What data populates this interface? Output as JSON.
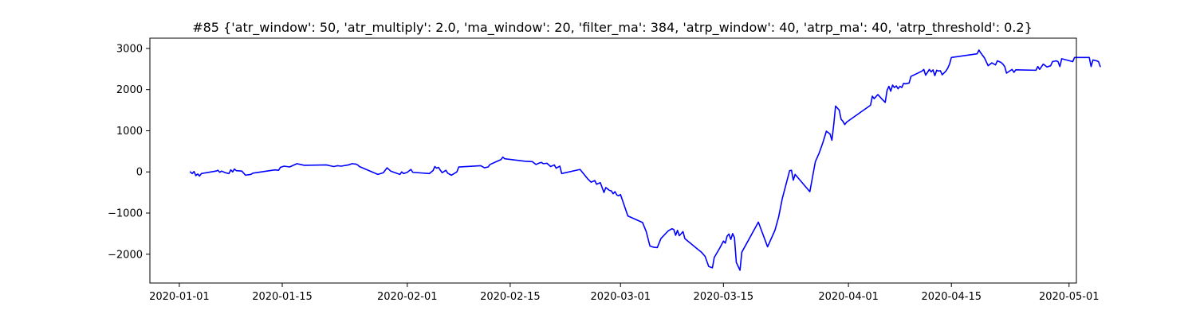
{
  "chart_data": {
    "type": "line",
    "title": "#85 {'atr_window': 50, 'atr_multiply': 2.0, 'ma_window': 20, 'filter_ma': 384, 'atrp_window': 40, 'atrp_ma': 40, 'atrp_threshold': 0.2}",
    "xlabel": "",
    "ylabel": "",
    "x_type": "date",
    "xlim": [
      "2019-12-28",
      "2020-05-02"
    ],
    "ylim": [
      -2700,
      3250
    ],
    "grid": false,
    "x_ticks": [
      {
        "date": "2020-01-01",
        "label": "2020-01-01"
      },
      {
        "date": "2020-01-15",
        "label": "2020-01-15"
      },
      {
        "date": "2020-02-01",
        "label": "2020-02-01"
      },
      {
        "date": "2020-02-15",
        "label": "2020-02-15"
      },
      {
        "date": "2020-03-01",
        "label": "2020-03-01"
      },
      {
        "date": "2020-03-15",
        "label": "2020-03-15"
      },
      {
        "date": "2020-04-01",
        "label": "2020-04-01"
      },
      {
        "date": "2020-04-15",
        "label": "2020-04-15"
      },
      {
        "date": "2020-05-01",
        "label": "2020-05-01"
      }
    ],
    "y_ticks": [
      {
        "value": -2000,
        "label": "−2000"
      },
      {
        "value": -1000,
        "label": "−1000"
      },
      {
        "value": 0,
        "label": "0"
      },
      {
        "value": 1000,
        "label": "1000"
      },
      {
        "value": 2000,
        "label": "2000"
      },
      {
        "value": 3000,
        "label": "3000"
      }
    ],
    "series": [
      {
        "color": "#0000ff",
        "points": [
          [
            "2020-01-02 12:00",
            0
          ],
          [
            "2020-01-02 18:00",
            -40
          ],
          [
            "2020-01-03 00:00",
            10
          ],
          [
            "2020-01-03 06:00",
            -90
          ],
          [
            "2020-01-03 12:00",
            -50
          ],
          [
            "2020-01-03 18:00",
            -100
          ],
          [
            "2020-01-04 00:00",
            -40
          ],
          [
            "2020-01-06 00:00",
            20
          ],
          [
            "2020-01-06 06:00",
            40
          ],
          [
            "2020-01-06 12:00",
            -10
          ],
          [
            "2020-01-06 18:00",
            20
          ],
          [
            "2020-01-07 06:00",
            -20
          ],
          [
            "2020-01-07 18:00",
            -40
          ],
          [
            "2020-01-08 00:00",
            50
          ],
          [
            "2020-01-08 06:00",
            0
          ],
          [
            "2020-01-08 12:00",
            70
          ],
          [
            "2020-01-08 18:00",
            30
          ],
          [
            "2020-01-09 12:00",
            20
          ],
          [
            "2020-01-10 00:00",
            -80
          ],
          [
            "2020-01-10 18:00",
            -60
          ],
          [
            "2020-01-11 00:00",
            -30
          ],
          [
            "2020-01-14 00:00",
            50
          ],
          [
            "2020-01-14 12:00",
            40
          ],
          [
            "2020-01-14 18:00",
            110
          ],
          [
            "2020-01-15 06:00",
            140
          ],
          [
            "2020-01-16 00:00",
            120
          ],
          [
            "2020-01-17 00:00",
            200
          ],
          [
            "2020-01-17 12:00",
            180
          ],
          [
            "2020-01-18 00:00",
            160
          ],
          [
            "2020-01-21 00:00",
            170
          ],
          [
            "2020-01-21 12:00",
            150
          ],
          [
            "2020-01-22 00:00",
            130
          ],
          [
            "2020-01-22 12:00",
            150
          ],
          [
            "2020-01-23 00:00",
            140
          ],
          [
            "2020-01-24 00:00",
            170
          ],
          [
            "2020-01-24 12:00",
            200
          ],
          [
            "2020-01-25 00:00",
            190
          ],
          [
            "2020-01-25 06:00",
            170
          ],
          [
            "2020-01-25 12:00",
            130
          ],
          [
            "2020-01-28 00:00",
            -60
          ],
          [
            "2020-01-28 18:00",
            -20
          ],
          [
            "2020-01-29 06:00",
            100
          ],
          [
            "2020-01-29 18:00",
            20
          ],
          [
            "2020-01-30 12:00",
            -30
          ],
          [
            "2020-01-31 00:00",
            -60
          ],
          [
            "2020-01-31 06:00",
            0
          ],
          [
            "2020-01-31 12:00",
            -40
          ],
          [
            "2020-02-01 00:00",
            -10
          ],
          [
            "2020-02-01 12:00",
            60
          ],
          [
            "2020-02-01 18:00",
            -10
          ],
          [
            "2020-02-04 00:00",
            -40
          ],
          [
            "2020-02-04 12:00",
            30
          ],
          [
            "2020-02-04 18:00",
            130
          ],
          [
            "2020-02-05 00:00",
            90
          ],
          [
            "2020-02-05 06:00",
            110
          ],
          [
            "2020-02-05 12:00",
            40
          ],
          [
            "2020-02-05 18:00",
            -20
          ],
          [
            "2020-02-06 06:00",
            40
          ],
          [
            "2020-02-06 12:00",
            -30
          ],
          [
            "2020-02-07 00:00",
            -80
          ],
          [
            "2020-02-07 18:00",
            0
          ],
          [
            "2020-02-08 00:00",
            120
          ],
          [
            "2020-02-11 00:00",
            150
          ],
          [
            "2020-02-11 12:00",
            100
          ],
          [
            "2020-02-12 00:00",
            120
          ],
          [
            "2020-02-12 06:00",
            180
          ],
          [
            "2020-02-13 06:00",
            260
          ],
          [
            "2020-02-13 18:00",
            300
          ],
          [
            "2020-02-14 00:00",
            360
          ],
          [
            "2020-02-14 06:00",
            320
          ],
          [
            "2020-02-17 00:00",
            260
          ],
          [
            "2020-02-18 00:00",
            250
          ],
          [
            "2020-02-18 12:00",
            180
          ],
          [
            "2020-02-19 00:00",
            220
          ],
          [
            "2020-02-19 06:00",
            230
          ],
          [
            "2020-02-19 12:00",
            200
          ],
          [
            "2020-02-20 00:00",
            210
          ],
          [
            "2020-02-20 12:00",
            130
          ],
          [
            "2020-02-21 00:00",
            170
          ],
          [
            "2020-02-21 06:00",
            90
          ],
          [
            "2020-02-21 18:00",
            140
          ],
          [
            "2020-02-22 00:00",
            -40
          ],
          [
            "2020-02-24 12:00",
            60
          ],
          [
            "2020-02-25 12:00",
            -160
          ],
          [
            "2020-02-26 00:00",
            -250
          ],
          [
            "2020-02-26 12:00",
            -210
          ],
          [
            "2020-02-26 18:00",
            -300
          ],
          [
            "2020-02-27 06:00",
            -260
          ],
          [
            "2020-02-27 18:00",
            -500
          ],
          [
            "2020-02-28 00:00",
            -380
          ],
          [
            "2020-02-28 12:00",
            -450
          ],
          [
            "2020-02-28 18:00",
            -460
          ],
          [
            "2020-02-29 00:00",
            -530
          ],
          [
            "2020-02-29 06:00",
            -480
          ],
          [
            "2020-02-29 12:00",
            -560
          ],
          [
            "2020-02-29 18:00",
            -580
          ],
          [
            "2020-03-01 00:00",
            -550
          ],
          [
            "2020-03-02 00:00",
            -1070
          ],
          [
            "2020-03-03 00:00",
            -1150
          ],
          [
            "2020-03-04 00:00",
            -1230
          ],
          [
            "2020-03-04 12:00",
            -1450
          ],
          [
            "2020-03-05 00:00",
            -1800
          ],
          [
            "2020-03-05 12:00",
            -1830
          ],
          [
            "2020-03-06 00:00",
            -1840
          ],
          [
            "2020-03-06 12:00",
            -1620
          ],
          [
            "2020-03-07 12:00",
            -1430
          ],
          [
            "2020-03-08 00:00",
            -1380
          ],
          [
            "2020-03-08 06:00",
            -1400
          ],
          [
            "2020-03-08 12:00",
            -1540
          ],
          [
            "2020-03-08 18:00",
            -1420
          ],
          [
            "2020-03-09 00:00",
            -1550
          ],
          [
            "2020-03-09 12:00",
            -1450
          ],
          [
            "2020-03-09 18:00",
            -1620
          ],
          [
            "2020-03-11 12:00",
            -1880
          ],
          [
            "2020-03-12 00:00",
            -1950
          ],
          [
            "2020-03-12 12:00",
            -2050
          ],
          [
            "2020-03-13 00:00",
            -2300
          ],
          [
            "2020-03-13 12:00",
            -2330
          ],
          [
            "2020-03-13 18:00",
            -2080
          ],
          [
            "2020-03-14 12:00",
            -1850
          ],
          [
            "2020-03-15 00:00",
            -1680
          ],
          [
            "2020-03-15 06:00",
            -1730
          ],
          [
            "2020-03-15 12:00",
            -1560
          ],
          [
            "2020-03-15 18:00",
            -1510
          ],
          [
            "2020-03-16 00:00",
            -1640
          ],
          [
            "2020-03-16 06:00",
            -1500
          ],
          [
            "2020-03-16 12:00",
            -1600
          ],
          [
            "2020-03-16 18:00",
            -2200
          ],
          [
            "2020-03-17 06:00",
            -2390
          ],
          [
            "2020-03-17 12:00",
            -1950
          ],
          [
            "2020-03-19 18:00",
            -1220
          ],
          [
            "2020-03-21 00:00",
            -1820
          ],
          [
            "2020-03-22 00:00",
            -1420
          ],
          [
            "2020-03-22 12:00",
            -1100
          ],
          [
            "2020-03-23 00:00",
            -650
          ],
          [
            "2020-03-24 00:00",
            30
          ],
          [
            "2020-03-24 06:00",
            40
          ],
          [
            "2020-03-24 12:00",
            -200
          ],
          [
            "2020-03-24 18:00",
            -60
          ],
          [
            "2020-03-26 18:00",
            -480
          ],
          [
            "2020-03-27 12:00",
            250
          ],
          [
            "2020-03-28 00:00",
            450
          ],
          [
            "2020-03-28 12:00",
            700
          ],
          [
            "2020-03-29 00:00",
            990
          ],
          [
            "2020-03-29 12:00",
            920
          ],
          [
            "2020-03-29 18:00",
            770
          ],
          [
            "2020-03-30 00:00",
            1150
          ],
          [
            "2020-03-30 06:00",
            1600
          ],
          [
            "2020-03-30 12:00",
            1550
          ],
          [
            "2020-03-30 18:00",
            1500
          ],
          [
            "2020-03-31 00:00",
            1280
          ],
          [
            "2020-03-31 06:00",
            1230
          ],
          [
            "2020-03-31 12:00",
            1150
          ],
          [
            "2020-03-31 18:00",
            1210
          ],
          [
            "2020-04-04 00:00",
            1620
          ],
          [
            "2020-04-04 06:00",
            1840
          ],
          [
            "2020-04-04 12:00",
            1780
          ],
          [
            "2020-04-05 00:00",
            1880
          ],
          [
            "2020-04-05 12:00",
            1780
          ],
          [
            "2020-04-06 00:00",
            1690
          ],
          [
            "2020-04-06 06:00",
            1980
          ],
          [
            "2020-04-06 12:00",
            2080
          ],
          [
            "2020-04-06 18:00",
            1960
          ],
          [
            "2020-04-07 00:00",
            2110
          ],
          [
            "2020-04-07 06:00",
            2050
          ],
          [
            "2020-04-07 12:00",
            2090
          ],
          [
            "2020-04-07 18:00",
            2020
          ],
          [
            "2020-04-08 00:00",
            2080
          ],
          [
            "2020-04-08 06:00",
            2050
          ],
          [
            "2020-04-08 12:00",
            2150
          ],
          [
            "2020-04-08 18:00",
            2140
          ],
          [
            "2020-04-09 06:00",
            2160
          ],
          [
            "2020-04-09 12:00",
            2320
          ],
          [
            "2020-04-11 00:00",
            2450
          ],
          [
            "2020-04-11 06:00",
            2490
          ],
          [
            "2020-04-11 12:00",
            2350
          ],
          [
            "2020-04-11 18:00",
            2420
          ],
          [
            "2020-04-12 00:00",
            2490
          ],
          [
            "2020-04-12 06:00",
            2430
          ],
          [
            "2020-04-12 12:00",
            2480
          ],
          [
            "2020-04-12 18:00",
            2340
          ],
          [
            "2020-04-13 00:00",
            2470
          ],
          [
            "2020-04-13 06:00",
            2450
          ],
          [
            "2020-04-13 12:00",
            2460
          ],
          [
            "2020-04-13 18:00",
            2360
          ],
          [
            "2020-04-14 06:00",
            2450
          ],
          [
            "2020-04-14 12:00",
            2520
          ],
          [
            "2020-04-14 18:00",
            2620
          ],
          [
            "2020-04-15 00:00",
            2780
          ],
          [
            "2020-04-18 12:00",
            2870
          ],
          [
            "2020-04-18 18:00",
            2960
          ],
          [
            "2020-04-19 00:00",
            2890
          ],
          [
            "2020-04-19 12:00",
            2770
          ],
          [
            "2020-04-20 00:00",
            2580
          ],
          [
            "2020-04-20 12:00",
            2650
          ],
          [
            "2020-04-21 00:00",
            2600
          ],
          [
            "2020-04-21 06:00",
            2700
          ],
          [
            "2020-04-21 18:00",
            2660
          ],
          [
            "2020-04-22 00:00",
            2620
          ],
          [
            "2020-04-22 06:00",
            2560
          ],
          [
            "2020-04-22 12:00",
            2400
          ],
          [
            "2020-04-23 00:00",
            2460
          ],
          [
            "2020-04-23 06:00",
            2490
          ],
          [
            "2020-04-23 12:00",
            2420
          ],
          [
            "2020-04-23 18:00",
            2480
          ],
          [
            "2020-04-26 12:00",
            2470
          ],
          [
            "2020-04-26 18:00",
            2560
          ],
          [
            "2020-04-27 00:00",
            2490
          ],
          [
            "2020-04-27 12:00",
            2620
          ],
          [
            "2020-04-28 00:00",
            2550
          ],
          [
            "2020-04-28 12:00",
            2580
          ],
          [
            "2020-04-28 18:00",
            2680
          ],
          [
            "2020-04-29 06:00",
            2700
          ],
          [
            "2020-04-29 12:00",
            2680
          ],
          [
            "2020-04-29 18:00",
            2560
          ],
          [
            "2020-04-30 00:00",
            2750
          ],
          [
            "2020-05-01 12:00",
            2680
          ],
          [
            "2020-05-01 18:00",
            2780
          ],
          [
            "2020-05-03 18:00",
            2780
          ],
          [
            "2020-05-04 00:00",
            2560
          ],
          [
            "2020-05-04 06:00",
            2720
          ],
          [
            "2020-05-04 18:00",
            2700
          ],
          [
            "2020-05-05 00:00",
            2680
          ],
          [
            "2020-05-05 06:00",
            2560
          ]
        ]
      }
    ]
  }
}
